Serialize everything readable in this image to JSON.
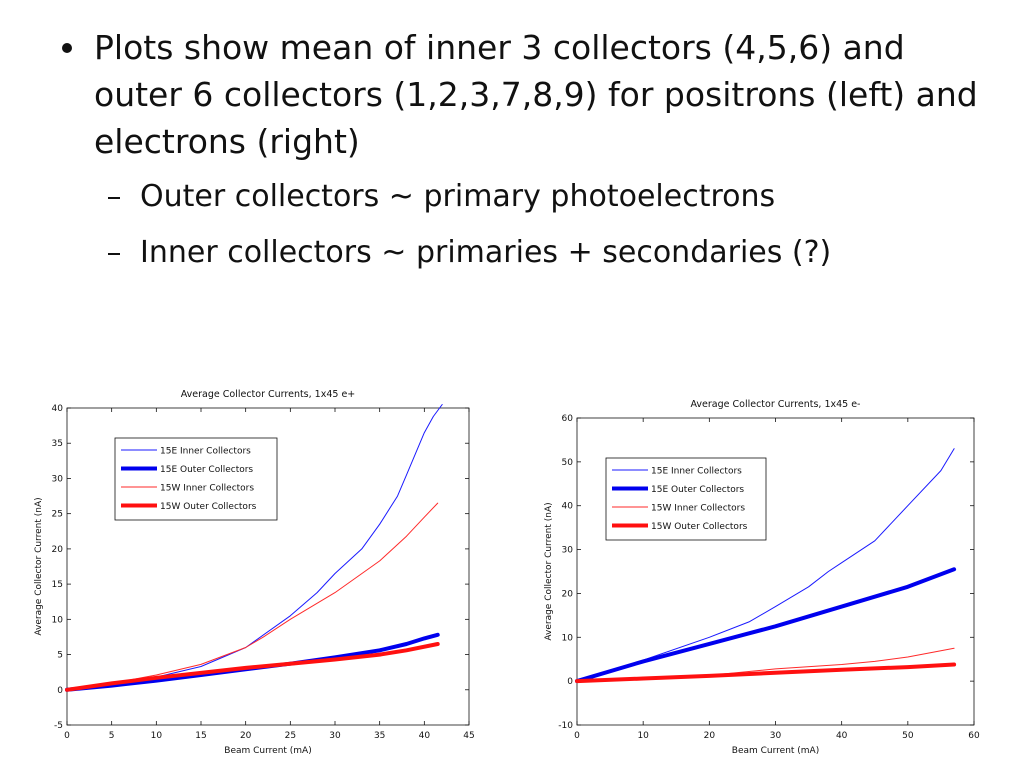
{
  "slide": {
    "bullet_main": "Plots show mean of inner 3 collectors (4,5,6) and outer 6 collectors (1,2,3,7,8,9) for positrons (left) and electrons (right)",
    "sub_bullets": [
      "Outer collectors ~ primary photoelectrons",
      "Inner collectors ~ primaries + secondaries (?)"
    ]
  },
  "chart_data": [
    {
      "type": "line",
      "title": "Average Collector Currents, 1x45 e+",
      "xlabel": "Beam Current (mA)",
      "ylabel": "Average Collector Current (nA)",
      "xlim": [
        0,
        45
      ],
      "ylim": [
        -5,
        40
      ],
      "xticks": [
        0,
        5,
        10,
        15,
        20,
        25,
        30,
        35,
        40,
        45
      ],
      "yticks": [
        -5,
        0,
        5,
        10,
        15,
        20,
        25,
        30,
        35,
        40
      ],
      "legend_position": "top-left",
      "series": [
        {
          "name": "15E Inner Collectors",
          "color": "#1a1aff",
          "width": 1,
          "x": [
            0,
            5,
            10,
            15,
            20,
            25,
            28,
            30,
            33,
            35,
            37,
            38,
            39,
            40,
            41,
            42
          ],
          "y": [
            0,
            0.8,
            1.8,
            3.3,
            6.0,
            10.5,
            13.8,
            16.5,
            20.0,
            23.5,
            27.5,
            30.5,
            33.5,
            36.5,
            38.8,
            40.5
          ]
        },
        {
          "name": "15E Outer Collectors",
          "color": "#0000ee",
          "width": 4,
          "x": [
            0,
            5,
            10,
            15,
            20,
            25,
            30,
            35,
            38,
            40,
            41.5
          ],
          "y": [
            0,
            0.6,
            1.3,
            2.1,
            2.9,
            3.7,
            4.6,
            5.6,
            6.5,
            7.3,
            7.8
          ]
        },
        {
          "name": "15W Inner Collectors",
          "color": "#ff2a2a",
          "width": 1,
          "x": [
            0,
            5,
            10,
            15,
            20,
            22,
            25,
            30,
            35,
            38,
            40,
            41.5
          ],
          "y": [
            0,
            0.9,
            2.1,
            3.6,
            6.0,
            7.5,
            10.0,
            13.8,
            18.3,
            21.8,
            24.5,
            26.5
          ]
        },
        {
          "name": "15W Outer Collectors",
          "color": "#ff1010",
          "width": 4,
          "x": [
            0,
            5,
            10,
            15,
            20,
            25,
            30,
            35,
            38,
            41.5
          ],
          "y": [
            0,
            0.9,
            1.7,
            2.4,
            3.1,
            3.7,
            4.3,
            5.0,
            5.6,
            6.5
          ]
        }
      ]
    },
    {
      "type": "line",
      "title": "Average Collector Currents, 1x45 e-",
      "xlabel": "Beam Current (mA)",
      "ylabel": "Average Collector Current (nA)",
      "xlim": [
        0,
        60
      ],
      "ylim": [
        -10,
        60
      ],
      "xticks": [
        0,
        10,
        20,
        30,
        40,
        50,
        60
      ],
      "yticks": [
        -10,
        0,
        10,
        20,
        30,
        40,
        50,
        60
      ],
      "legend_position": "top-left",
      "series": [
        {
          "name": "15E Inner Collectors",
          "color": "#1a1aff",
          "width": 1,
          "x": [
            0,
            10,
            20,
            26,
            30,
            35,
            38,
            40,
            45,
            50,
            55,
            57
          ],
          "y": [
            0,
            4.8,
            10.0,
            13.5,
            17.0,
            21.5,
            25.0,
            27.0,
            32.0,
            40.0,
            48.0,
            53.0
          ]
        },
        {
          "name": "15E Outer Collectors",
          "color": "#0000ee",
          "width": 4,
          "x": [
            0,
            10,
            20,
            30,
            40,
            50,
            57
          ],
          "y": [
            0,
            4.5,
            8.5,
            12.5,
            17.0,
            21.5,
            25.5
          ]
        },
        {
          "name": "15W Inner Collectors",
          "color": "#ff2a2a",
          "width": 1,
          "x": [
            0,
            10,
            20,
            30,
            40,
            45,
            50,
            57
          ],
          "y": [
            0,
            0.6,
            1.3,
            2.8,
            3.8,
            4.5,
            5.5,
            7.5
          ]
        },
        {
          "name": "15W Outer Collectors",
          "color": "#ff1010",
          "width": 4,
          "x": [
            0,
            10,
            20,
            30,
            40,
            50,
            57
          ],
          "y": [
            0,
            0.6,
            1.2,
            1.9,
            2.6,
            3.2,
            3.8
          ]
        }
      ]
    }
  ]
}
